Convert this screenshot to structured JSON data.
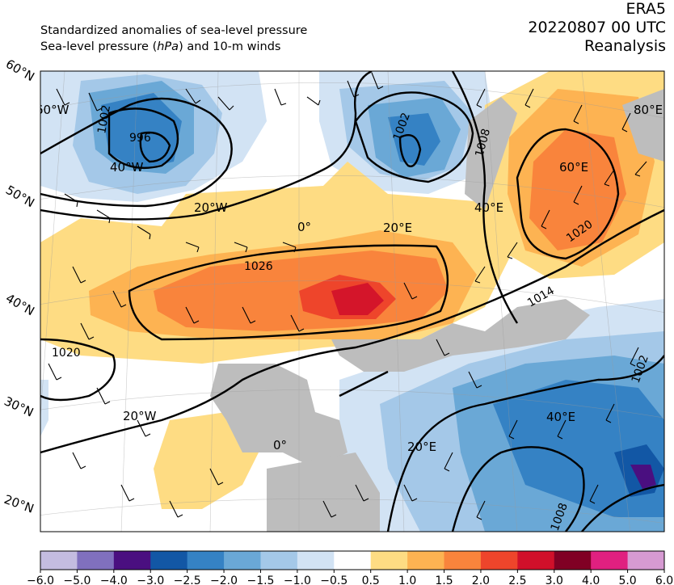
{
  "header": {
    "line1": "Standardized anomalies of sea-level pressure",
    "line2_pre": "Sea-level pressure (",
    "line2_unit": "hPa",
    "line2_post": ") and 10-m winds",
    "model": "ERA5",
    "datetime": "20220807 00 UTC",
    "product": "Reanalysis"
  },
  "lat_labels": [
    "60°N",
    "50°N",
    "40°N",
    "30°N",
    "20°N"
  ],
  "lon_labels": [
    "60°W",
    "40°W",
    "20°W",
    "0°",
    "20°E",
    "40°E",
    "60°E",
    "80°E",
    "20°W",
    "0°",
    "20°E",
    "40°E"
  ],
  "isobar_labels": [
    "1002",
    "996",
    "1002",
    "1008",
    "1026",
    "1020",
    "1014",
    "1020",
    "1002",
    "1008"
  ],
  "colorbar": {
    "ticks": [
      "−6.0",
      "−5.0",
      "−4.0",
      "−3.0",
      "−2.5",
      "−2.0",
      "−1.5",
      "−1.0",
      "−0.5",
      "0.5",
      "1.0",
      "1.5",
      "2.0",
      "2.5",
      "3.0",
      "4.0",
      "5.0",
      "6.0"
    ],
    "colors": [
      "#c4bce0",
      "#8070be",
      "#4a0f80",
      "#1257a5",
      "#3582c4",
      "#6aa8d6",
      "#a4c8e8",
      "#d2e3f4",
      "#ffffff",
      "#fedc83",
      "#fdb352",
      "#f9843c",
      "#ee452b",
      "#d0102a",
      "#800024",
      "#e02080",
      "#d69ad2"
    ]
  }
}
